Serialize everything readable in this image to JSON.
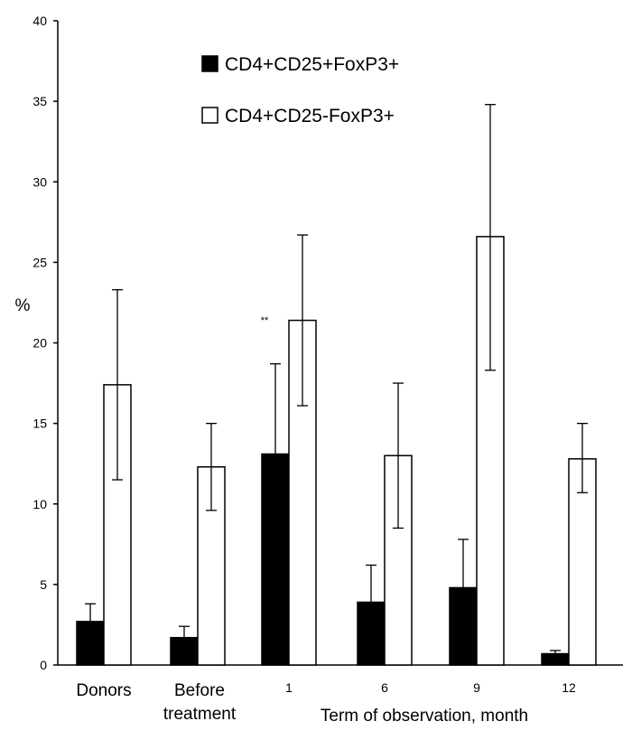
{
  "chart_data": {
    "type": "bar",
    "title": "",
    "ylabel": "%",
    "xlabel": "Term of observation, month",
    "ylim": [
      0,
      40
    ],
    "yticks": [
      0,
      5,
      10,
      15,
      20,
      25,
      30,
      35,
      40
    ],
    "grid": false,
    "legend_position": "top-center",
    "categories": [
      "Donors",
      "Before treatment",
      "1",
      "6",
      "9",
      "12"
    ],
    "category_lines": [
      [
        "Donors"
      ],
      [
        "Before",
        "treatment"
      ],
      [
        "1"
      ],
      [
        "6"
      ],
      [
        "9"
      ],
      [
        "12"
      ]
    ],
    "series": [
      {
        "name": "CD4+CD25+FoxP3+",
        "fill": "#000000",
        "values": [
          2.7,
          1.7,
          13.1,
          3.9,
          4.8,
          0.7
        ],
        "err_upper": [
          3.8,
          2.4,
          18.7,
          6.2,
          7.8,
          0.9
        ]
      },
      {
        "name": "CD4+CD25-FoxP3+",
        "fill": "#ffffff",
        "values": [
          17.4,
          12.3,
          21.4,
          13.0,
          26.6,
          12.8
        ],
        "err_lower": [
          11.5,
          9.6,
          16.1,
          8.5,
          18.3,
          10.7
        ],
        "err_upper": [
          23.3,
          15.0,
          26.7,
          17.5,
          34.8,
          15.0
        ]
      }
    ],
    "annotations": [
      {
        "text": "**",
        "category": "1",
        "series": 0
      }
    ]
  },
  "colors": {
    "axis": "#000000",
    "bar_outline": "#000000",
    "background": "#ffffff"
  }
}
